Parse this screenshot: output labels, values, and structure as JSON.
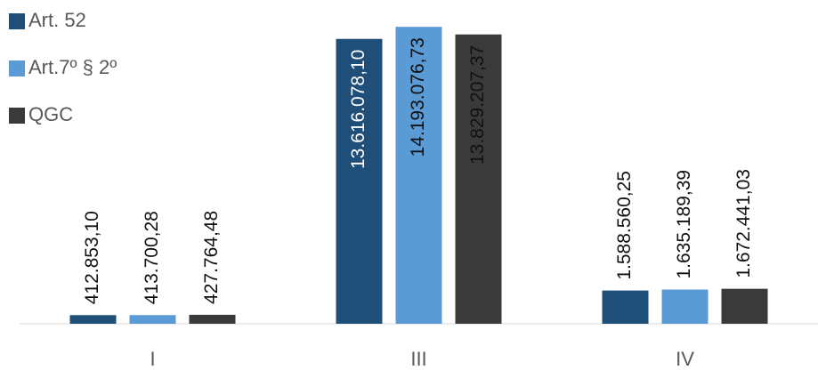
{
  "chart_data": {
    "type": "bar",
    "categories": [
      "I",
      "III",
      "IV"
    ],
    "series": [
      {
        "name": "Art. 52",
        "color": "#1f4e79",
        "values": [
          412853.1,
          13616078.1,
          1588560.25
        ],
        "value_labels": [
          "412.853,10",
          "13.616.078,10",
          "1.588.560,25"
        ]
      },
      {
        "name": "Art.7º § 2º",
        "color": "#5b9bd5",
        "values": [
          413700.28,
          14193076.73,
          1635189.39
        ],
        "value_labels": [
          "413.700,28",
          "14.193.076,73",
          "1.635.189,39"
        ]
      },
      {
        "name": "QGC",
        "color": "#3a3a3a",
        "values": [
          427764.48,
          13829207.37,
          1672441.03
        ],
        "value_labels": [
          "427.764,48",
          "13.829.207,37",
          "1.672.441,03"
        ]
      }
    ],
    "ylim": [
      0,
      14200000
    ],
    "legend": "top-left"
  }
}
